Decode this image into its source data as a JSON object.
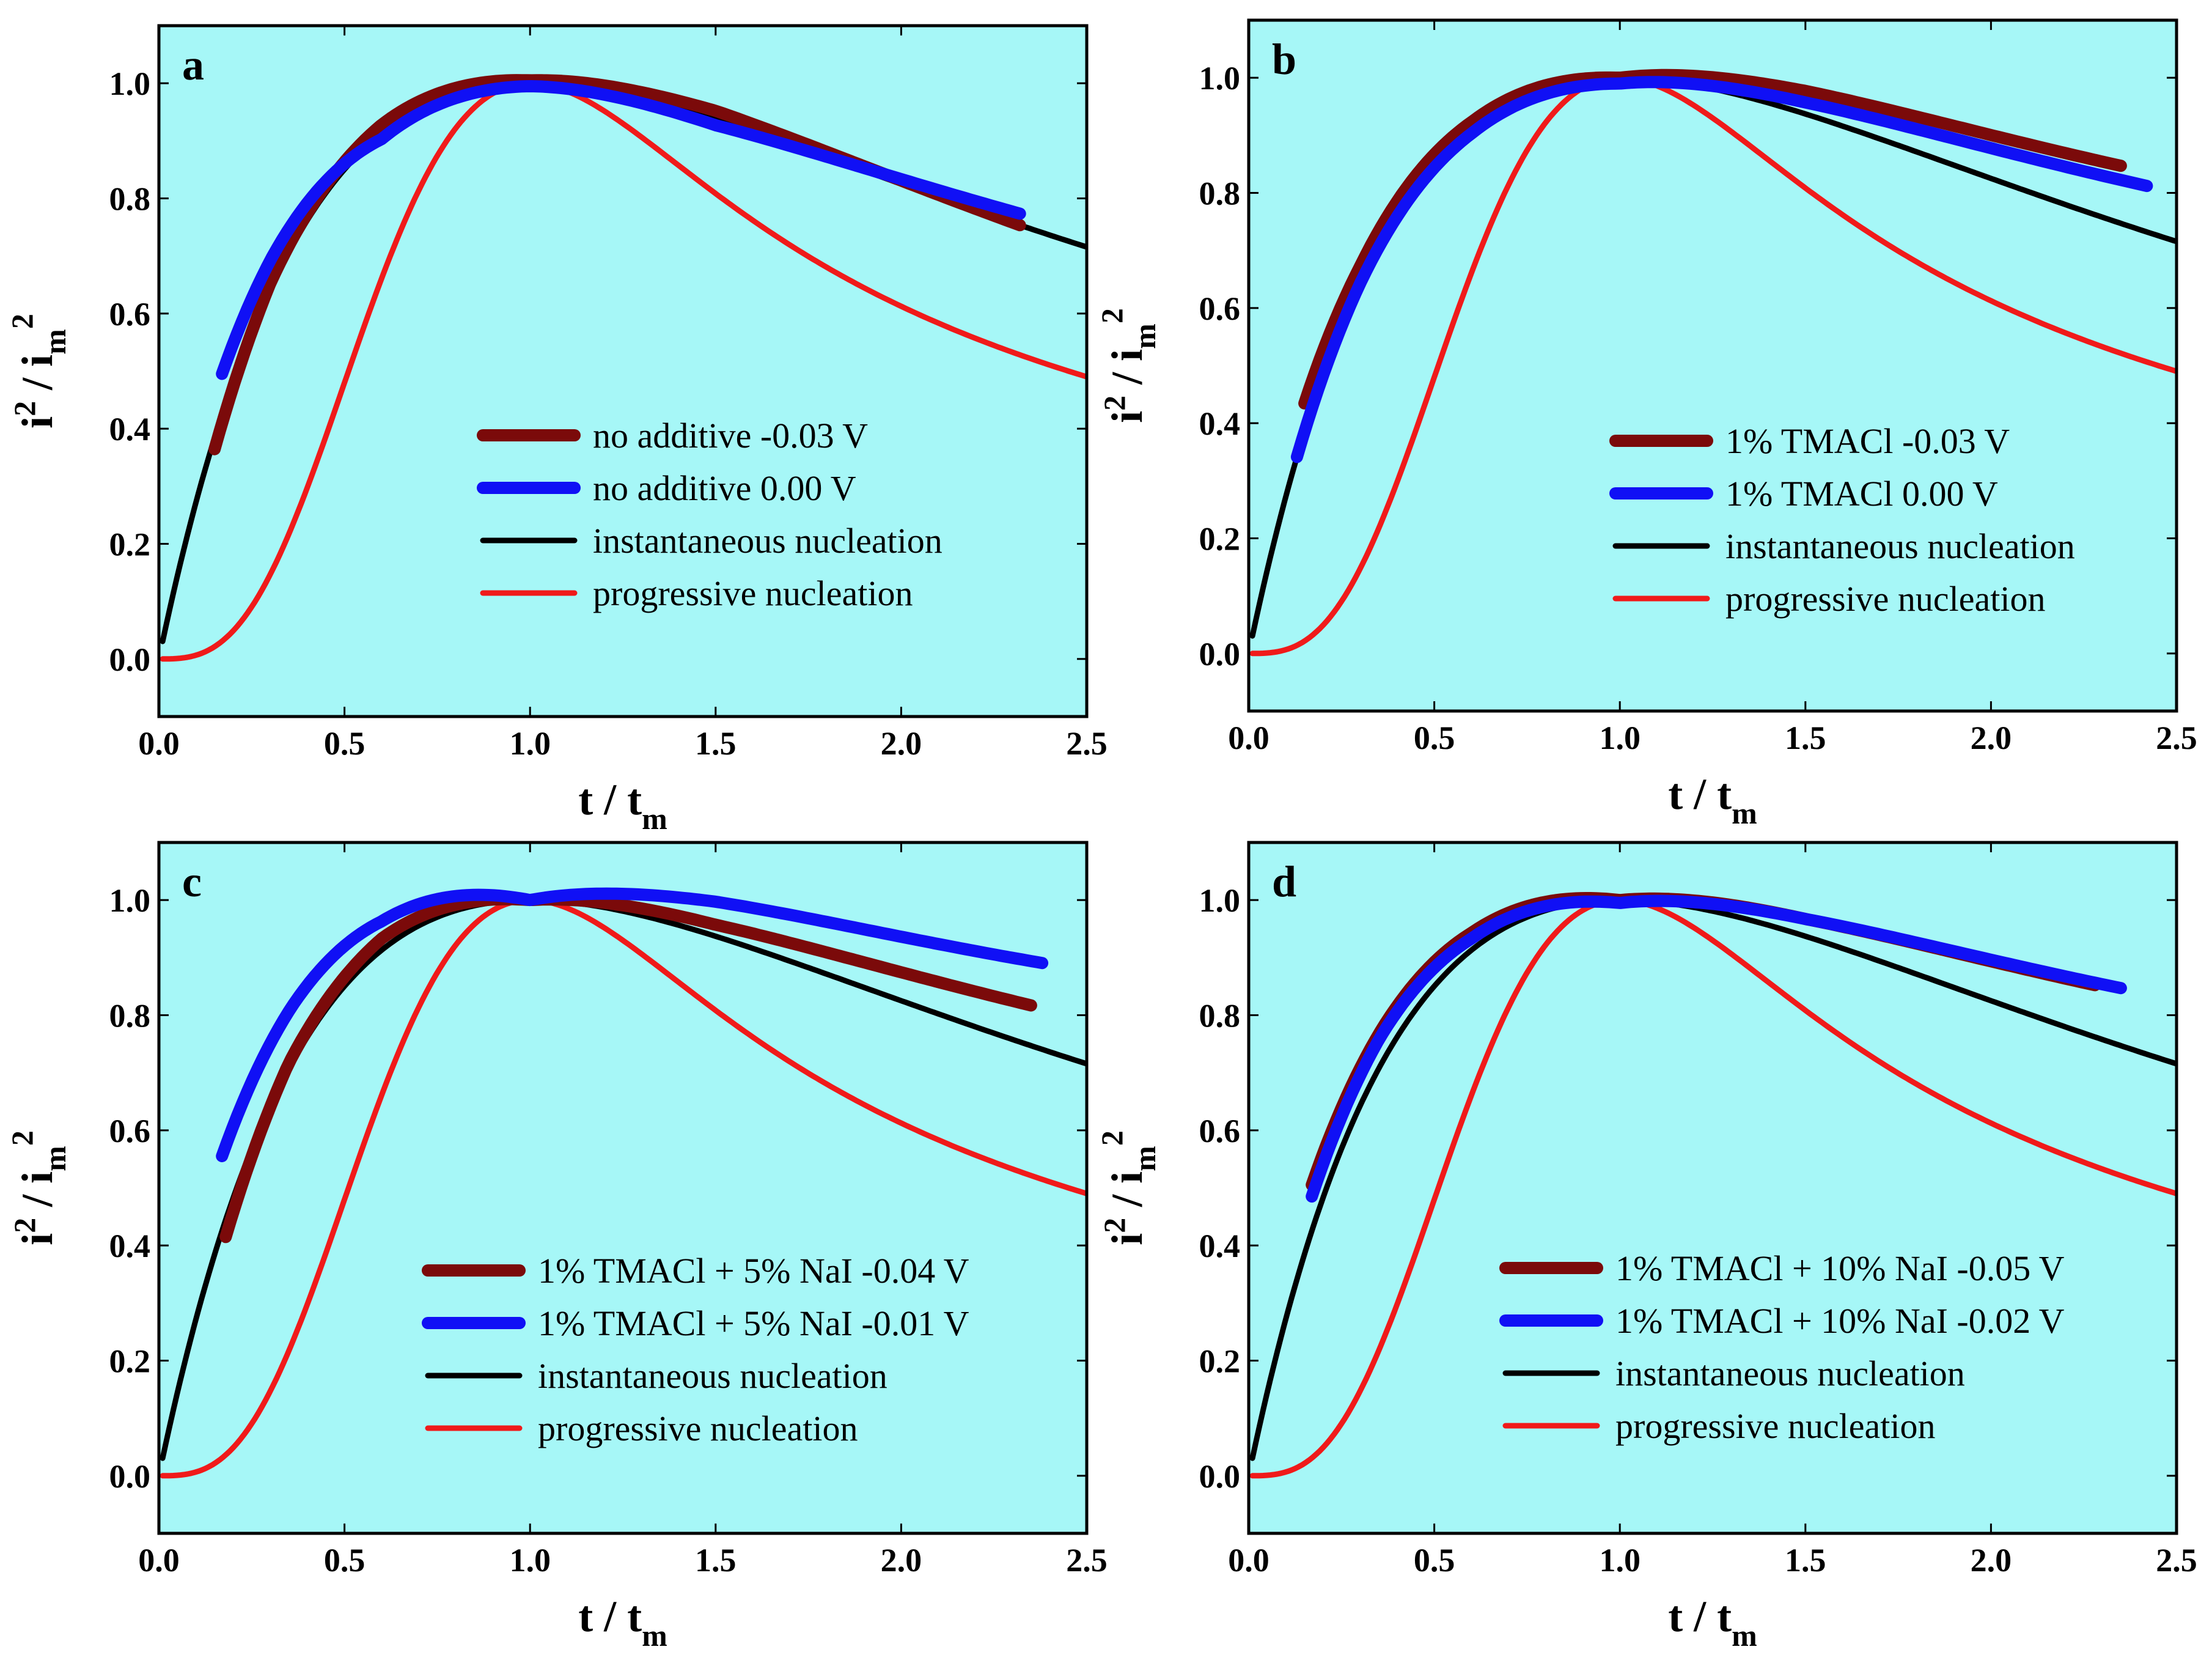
{
  "figure": {
    "background": "#ffffff",
    "plot_background": "#a6f7f7"
  },
  "colors": {
    "dark_red": "#7b0a0a",
    "blue": "#1010f5",
    "black": "#000000",
    "red": "#f01a1a"
  },
  "chart_data": [
    {
      "type": "line",
      "panel_label": "a",
      "xlabel": {
        "main": "t / t",
        "sub": "m"
      },
      "ylabel": {
        "main": "i",
        "sup": "2",
        "mid": " / i",
        "sub": "m",
        "sup2": "2"
      },
      "xlim": [
        0,
        2.5
      ],
      "ylim": [
        -0.1,
        1.1
      ],
      "x_ticks": [
        "0.0",
        "0.5",
        "1.0",
        "1.5",
        "2.0",
        "2.5"
      ],
      "y_ticks": [
        "0.0",
        "0.2",
        "0.4",
        "0.6",
        "0.8",
        "1.0"
      ],
      "legend_position": "center-right",
      "series": [
        {
          "name": "no additive  -0.03 V",
          "kind": "experimental",
          "color": "dark_red",
          "x_start": 0.15,
          "x_end": 2.32,
          "ref": "instantaneous",
          "delta": [
            [
              0.15,
              -0.02
            ],
            [
              0.3,
              0.01
            ],
            [
              0.6,
              0.015
            ],
            [
              1.0,
              0.005
            ],
            [
              1.5,
              0.015
            ],
            [
              2.32,
              0.0
            ]
          ]
        },
        {
          "name": "no additive   0.00 V",
          "kind": "experimental",
          "color": "blue",
          "x_start": 0.17,
          "x_end": 2.32,
          "ref": "instantaneous",
          "delta": [
            [
              0.17,
              0.07
            ],
            [
              0.3,
              0.05
            ],
            [
              0.6,
              -0.01
            ],
            [
              1.0,
              -0.005
            ],
            [
              1.5,
              -0.01
            ],
            [
              2.32,
              0.02
            ]
          ]
        },
        {
          "name": "instantaneous nucleation",
          "kind": "model",
          "model": "instantaneous",
          "color": "black"
        },
        {
          "name": "progressive nucleation",
          "kind": "model",
          "model": "progressive",
          "color": "red"
        }
      ]
    },
    {
      "type": "line",
      "panel_label": "b",
      "xlabel": {
        "main": "t / t",
        "sub": "m"
      },
      "ylabel": {
        "main": "i",
        "sup": "2",
        "mid": " / i",
        "sub": "m",
        "sup2": "2"
      },
      "xlim": [
        0,
        2.5
      ],
      "ylim": [
        -0.1,
        1.1
      ],
      "x_ticks": [
        "0.0",
        "0.5",
        "1.0",
        "1.5",
        "2.0",
        "2.5"
      ],
      "y_ticks": [
        "0.0",
        "0.2",
        "0.4",
        "0.6",
        "0.8",
        "1.0"
      ],
      "legend_position": "center-right",
      "series": [
        {
          "name": "1%  TMACl  -0.03 V",
          "kind": "experimental",
          "color": "dark_red",
          "x_start": 0.15,
          "x_end": 2.35,
          "ref": "instantaneous",
          "delta": [
            [
              0.15,
              0.05
            ],
            [
              0.3,
              0.03
            ],
            [
              0.6,
              0.01
            ],
            [
              1.0,
              0.0
            ],
            [
              1.5,
              0.04
            ],
            [
              2.35,
              0.1
            ]
          ]
        },
        {
          "name": "1%  TMACl   0.00 V",
          "kind": "experimental",
          "color": "blue",
          "x_start": 0.13,
          "x_end": 2.42,
          "ref": "instantaneous",
          "delta": [
            [
              0.13,
              0.0
            ],
            [
              0.3,
              0.0
            ],
            [
              0.6,
              -0.01
            ],
            [
              1.0,
              -0.01
            ],
            [
              1.5,
              0.02
            ],
            [
              2.42,
              0.08
            ]
          ]
        },
        {
          "name": "instantaneous nucleation",
          "kind": "model",
          "model": "instantaneous",
          "color": "black"
        },
        {
          "name": "progressive nucleation",
          "kind": "model",
          "model": "progressive",
          "color": "red"
        }
      ]
    },
    {
      "type": "line",
      "panel_label": "c",
      "xlabel": {
        "main": "t / t",
        "sub": "m"
      },
      "ylabel": {
        "main": "i",
        "sup": "2",
        "mid": " / i",
        "sub": "m",
        "sup2": "2"
      },
      "xlim": [
        0,
        2.5
      ],
      "ylim": [
        -0.1,
        1.1
      ],
      "x_ticks": [
        "0.0",
        "0.5",
        "1.0",
        "1.5",
        "2.0",
        "2.5"
      ],
      "y_ticks": [
        "0.0",
        "0.2",
        "0.4",
        "0.6",
        "0.8",
        "1.0"
      ],
      "legend_position": "bottom-right",
      "series": [
        {
          "name": "1% TMACl + 5% NaI  -0.04 V",
          "kind": "experimental",
          "color": "dark_red",
          "x_start": 0.18,
          "x_end": 2.35,
          "ref": "instantaneous",
          "delta": [
            [
              0.18,
              -0.03
            ],
            [
              0.35,
              0.01
            ],
            [
              0.6,
              0.02
            ],
            [
              1.0,
              0.0
            ],
            [
              1.5,
              0.02
            ],
            [
              2.35,
              0.07
            ]
          ]
        },
        {
          "name": "1% TMACl + 5% NaI  -0.01 V",
          "kind": "experimental",
          "color": "blue",
          "x_start": 0.17,
          "x_end": 2.38,
          "ref": "instantaneous",
          "delta": [
            [
              0.17,
              0.13
            ],
            [
              0.35,
              0.1
            ],
            [
              0.6,
              0.05
            ],
            [
              1.0,
              0.0
            ],
            [
              1.5,
              0.06
            ],
            [
              2.38,
              0.15
            ]
          ]
        },
        {
          "name": "instantaneous nucleation",
          "kind": "model",
          "model": "instantaneous",
          "color": "black"
        },
        {
          "name": "progressive nucleation",
          "kind": "model",
          "model": "progressive",
          "color": "red"
        }
      ]
    },
    {
      "type": "line",
      "panel_label": "d",
      "xlabel": {
        "main": "t / t",
        "sub": "m"
      },
      "ylabel": {
        "main": "i",
        "sup": "2",
        "mid": " / i",
        "sub": "m",
        "sup2": "2"
      },
      "xlim": [
        0,
        2.5
      ],
      "ylim": [
        -0.1,
        1.1
      ],
      "x_ticks": [
        "0.0",
        "0.5",
        "1.0",
        "1.5",
        "2.0",
        "2.5"
      ],
      "y_ticks": [
        "0.0",
        "0.2",
        "0.4",
        "0.6",
        "0.8",
        "1.0"
      ],
      "legend_position": "bottom-right",
      "series": [
        {
          "name": "1% TMACl + 10% NaI  -0.05 V",
          "kind": "experimental",
          "color": "dark_red",
          "x_start": 0.17,
          "x_end": 2.28,
          "ref": "instantaneous",
          "delta": [
            [
              0.17,
              0.08
            ],
            [
              0.35,
              0.06
            ],
            [
              0.6,
              0.03
            ],
            [
              1.0,
              0.0
            ],
            [
              1.5,
              0.03
            ],
            [
              2.28,
              0.09
            ]
          ]
        },
        {
          "name": "1% TMACl + 10% NaI  -0.02 V",
          "kind": "experimental",
          "color": "blue",
          "x_start": 0.17,
          "x_end": 2.35,
          "ref": "instantaneous",
          "delta": [
            [
              0.17,
              0.06
            ],
            [
              0.35,
              0.05
            ],
            [
              0.6,
              0.02
            ],
            [
              1.0,
              -0.005
            ],
            [
              1.5,
              0.03
            ],
            [
              2.35,
              0.1
            ]
          ]
        },
        {
          "name": "instantaneous nucleation",
          "kind": "model",
          "model": "instantaneous",
          "color": "black"
        },
        {
          "name": "progressive nucleation",
          "kind": "model",
          "model": "progressive",
          "color": "red"
        }
      ]
    }
  ]
}
